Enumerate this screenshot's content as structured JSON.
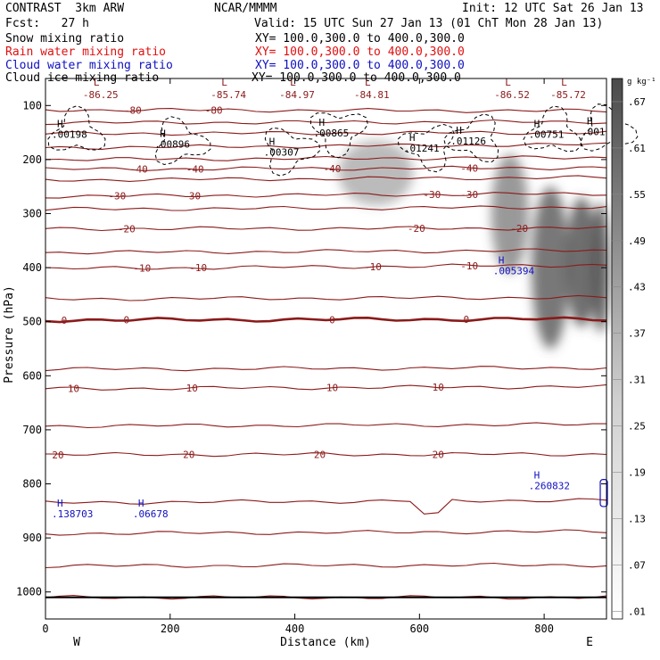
{
  "header": {
    "model": "CONTRAST  3km ARW",
    "org": "NCAR/MMMM",
    "init": "Init: 12 UTC Sat 26 Jan 13",
    "fcst": "Fcst:   27 h",
    "valid": "Valid: 15 UTC Sun 27 Jan 13 (01 ChT Mon 28 Jan 13)",
    "lines": [
      {
        "label": "Snow mixing ratio",
        "xy": "XY= 100.0,300.0 to 400.0,300.0",
        "color": "#000000"
      },
      {
        "label": "Rain water mixing ratio",
        "xy": "XY= 100.0,300.0 to 400.0,300.0",
        "color": "#e01010"
      },
      {
        "label": "Cloud water mixing ratio",
        "xy": "XY= 100.0,300.0 to 400.0,300.0",
        "color": "#1010c0"
      },
      {
        "label": "Cloud ice mixing ratio",
        "xy": "XY= 100.0,300.0 to 400.0,300.0",
        "color": "#000000"
      }
    ]
  },
  "chart_data": {
    "type": "heatmap",
    "xlabel": "Distance (km)",
    "ylabel": "Pressure (hPa)",
    "xlim": [
      0,
      900
    ],
    "ylim": [
      1050,
      50
    ],
    "x_ticks": [
      0,
      200,
      400,
      600,
      800
    ],
    "y_ticks": [
      100,
      200,
      300,
      400,
      500,
      600,
      700,
      800,
      900,
      1000
    ],
    "end_labels": {
      "left": "W",
      "right": "E"
    },
    "colorbar": {
      "unit": "g kg⁻¹",
      "ticks": [
        ".01",
        ".07",
        ".13",
        ".19",
        ".25",
        ".31",
        ".37",
        ".43",
        ".49",
        ".55",
        ".61",
        ".67"
      ],
      "tick_values": [
        0.01,
        0.07,
        0.13,
        0.19,
        0.25,
        0.31,
        0.37,
        0.43,
        0.49,
        0.55,
        0.61,
        0.67
      ]
    },
    "colors": {
      "temperature": "#8b1a1a",
      "cloud_ice": "#000000",
      "cloud_water": "#1010c0",
      "snow_shade": "#555555"
    },
    "snow_blobs": [
      {
        "x": 530,
        "p": 225,
        "rx": 60,
        "rp": 60,
        "level": 0.1
      },
      {
        "x": 745,
        "p": 300,
        "rx": 30,
        "rp": 110,
        "level": 0.3
      },
      {
        "x": 810,
        "p": 400,
        "rx": 30,
        "rp": 150,
        "level": 0.5
      },
      {
        "x": 860,
        "p": 390,
        "rx": 25,
        "rp": 120,
        "level": 0.55
      },
      {
        "x": 890,
        "p": 400,
        "rx": 15,
        "rp": 120,
        "level": 0.6
      }
    ],
    "temperature_contours": [
      {
        "t": -80,
        "p_start": 108,
        "p_end": 110,
        "label": "-80",
        "label_x": [
          140,
          270
        ]
      },
      {
        "t": -70,
        "p_start": 132,
        "p_end": 130,
        "label": "",
        "label_x": []
      },
      {
        "t": -60,
        "p_start": 152,
        "p_end": 150,
        "label": "",
        "label_x": []
      },
      {
        "t": -50,
        "p_start": 178,
        "p_end": 172,
        "label": "",
        "label_x": []
      },
      {
        "t": -45,
        "p_start": 200,
        "p_end": 196,
        "label": "",
        "label_x": []
      },
      {
        "t": -40,
        "p_start": 218,
        "p_end": 215,
        "label": "-40",
        "label_x": [
          150,
          240,
          460,
          680
        ]
      },
      {
        "t": -35,
        "p_start": 238,
        "p_end": 233,
        "label": "",
        "label_x": []
      },
      {
        "t": -30,
        "p_start": 268,
        "p_end": 263,
        "label": "-30",
        "label_x": [
          115,
          235,
          620,
          680
        ]
      },
      {
        "t": -25,
        "p_start": 292,
        "p_end": 288,
        "label": "",
        "label_x": []
      },
      {
        "t": -20,
        "p_start": 328,
        "p_end": 327,
        "label": "-20",
        "label_x": [
          130,
          595,
          760
        ]
      },
      {
        "t": -15,
        "p_start": 372,
        "p_end": 368,
        "label": "",
        "label_x": []
      },
      {
        "t": -10,
        "p_start": 402,
        "p_end": 395,
        "label": "-10",
        "label_x": [
          155,
          245,
          525,
          680
        ]
      },
      {
        "t": -5,
        "p_start": 458,
        "p_end": 455,
        "label": "",
        "label_x": []
      },
      {
        "t": 0,
        "p_start": 497,
        "p_end": 495,
        "label": "0",
        "label_x": [
          30,
          130,
          460,
          675
        ]
      },
      {
        "t": 5,
        "p_start": 588,
        "p_end": 585,
        "label": "",
        "label_x": []
      },
      {
        "t": 10,
        "p_start": 624,
        "p_end": 620,
        "label": "10",
        "label_x": [
          45,
          235,
          460,
          630
        ]
      },
      {
        "t": 15,
        "p_start": 693,
        "p_end": 690,
        "label": "",
        "label_x": []
      },
      {
        "t": 20,
        "p_start": 746,
        "p_end": 745,
        "label": "20",
        "label_x": [
          20,
          230,
          440,
          630
        ]
      },
      {
        "t": 25,
        "p_start": 835,
        "p_end": 830,
        "label": "",
        "label_x": []
      },
      {
        "t": 30,
        "p_start": 892,
        "p_end": 888,
        "label": "",
        "label_x": []
      },
      {
        "t": 35,
        "p_start": 952,
        "p_end": 950,
        "label": "",
        "label_x": []
      },
      {
        "t": 40,
        "p_start": 1010,
        "p_end": 1010,
        "label": "",
        "label_x": []
      }
    ],
    "top_lows": [
      {
        "x": 60,
        "value": "-86.25"
      },
      {
        "x": 265,
        "value": "-85.74"
      },
      {
        "x": 375,
        "value": "-84.97"
      },
      {
        "x": 495,
        "value": "-84.81"
      },
      {
        "x": 720,
        "value": "-86.52"
      },
      {
        "x": 810,
        "value": "-85.72"
      }
    ],
    "cloud_ice_maxima": [
      {
        "x": 10,
        "p": 160,
        "label": ".00198"
      },
      {
        "x": 175,
        "p": 178,
        "label": ".00896"
      },
      {
        "x": 350,
        "p": 193,
        "label": ".00307"
      },
      {
        "x": 430,
        "p": 157,
        "label": ".00865"
      },
      {
        "x": 575,
        "p": 185,
        "label": ".01241"
      },
      {
        "x": 650,
        "p": 172,
        "label": ".01126"
      },
      {
        "x": 775,
        "p": 160,
        "label": ".00751"
      },
      {
        "x": 860,
        "p": 155,
        "label": ".001"
      }
    ],
    "cloud_water_maxima": [
      {
        "x": 10,
        "p": 862,
        "label": ".138703"
      },
      {
        "x": 140,
        "p": 862,
        "label": ".06678"
      },
      {
        "x": 775,
        "p": 810,
        "label": ".260832"
      },
      {
        "x": 718,
        "p": 412,
        "label": ".005394"
      }
    ]
  }
}
